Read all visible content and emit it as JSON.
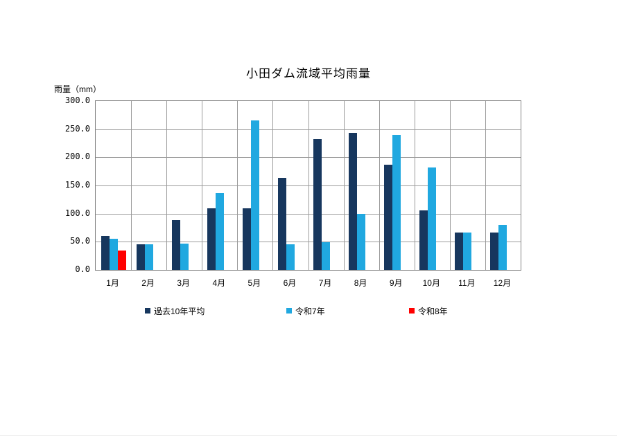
{
  "chart_data": {
    "type": "bar",
    "title": "小田ダム流域平均雨量",
    "y_axis_label": "雨量（mm）",
    "xlabel": "",
    "ylabel": "雨量（mm）",
    "categories": [
      "1月",
      "2月",
      "3月",
      "4月",
      "5月",
      "6月",
      "7月",
      "8月",
      "9月",
      "10月",
      "11月",
      "12月"
    ],
    "series": [
      {
        "name": "過去10年平均",
        "color": "#17375E",
        "values": [
          60,
          45,
          88,
          109,
          110,
          164,
          233,
          243,
          187,
          106,
          66,
          67
        ]
      },
      {
        "name": "令和7年",
        "color": "#20A8E0",
        "values": [
          55,
          46,
          47,
          137,
          266,
          46,
          49,
          99,
          240,
          182,
          67,
          80
        ]
      },
      {
        "name": "令和8年",
        "color": "#FF0000",
        "values": [
          35,
          null,
          null,
          null,
          null,
          null,
          null,
          null,
          null,
          null,
          null,
          null
        ]
      }
    ],
    "ylim": [
      0,
      300
    ],
    "y_tick_step": 50,
    "y_tick_labels": [
      "0.0",
      "50.0",
      "100.0",
      "150.0",
      "200.0",
      "250.0",
      "300.0"
    ],
    "grid": true,
    "grid_color": "#9a9a9a",
    "plot_border_color": "#808080",
    "legend_position": "bottom",
    "legend": [
      "過去10年平均",
      "令和7年",
      "令和8年"
    ]
  }
}
